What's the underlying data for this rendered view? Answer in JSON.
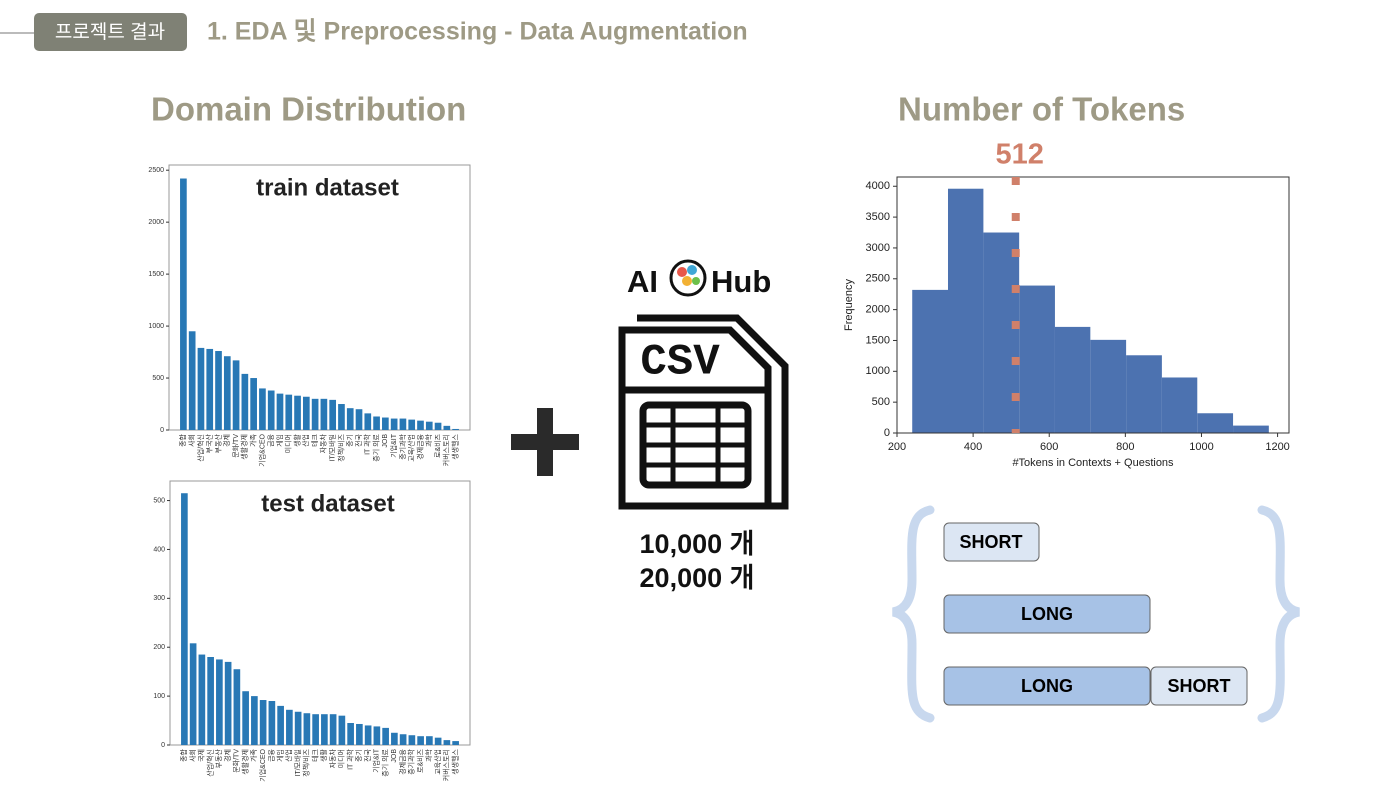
{
  "header": {
    "tag": "프로젝트 결과",
    "title": "1. EDA 및 Preprocessing - Data Augmentation"
  },
  "sections": [
    "Domain Distribution",
    "Number of Tokens"
  ],
  "logo": {
    "left": "AI",
    "right": "Hub"
  },
  "file_icon": "CSV",
  "counts": [
    "10,000 개",
    "20,000 개"
  ],
  "segments": [
    [
      "SHORT"
    ],
    [
      "LONG"
    ],
    [
      "LONG",
      "SHORT"
    ]
  ],
  "chart_data": [
    {
      "type": "bar",
      "title": "train dataset",
      "color": "#2878b5",
      "categories": [
        "종합",
        "사회",
        "산업/혁신",
        "부국산",
        "부동산",
        "경제",
        "문화/TV",
        "생활경제",
        "가족",
        "기업&CEO",
        "금융",
        "게임",
        "미디어",
        "생활",
        "산업",
        "테크",
        "자동차",
        "IT/모바일",
        "정책/비즈",
        "증기",
        "전국",
        "IT 과학",
        "증기 의료",
        "JOB",
        "기업&IT",
        "증기과학",
        "교육/산업",
        "경제금융",
        "과학",
        "로&비즈",
        "커버스토리",
        "생생헬스"
      ],
      "values": [
        2420,
        950,
        790,
        780,
        760,
        710,
        670,
        540,
        500,
        400,
        380,
        350,
        340,
        330,
        320,
        300,
        300,
        290,
        250,
        210,
        200,
        160,
        130,
        120,
        110,
        110,
        100,
        90,
        80,
        70,
        40,
        10
      ],
      "ylim": [
        0,
        2550
      ],
      "yticks": [
        0,
        500,
        1000,
        1500,
        2000,
        2500
      ]
    },
    {
      "type": "bar",
      "title": "test dataset",
      "color": "#2878b5",
      "categories": [
        "종합",
        "사회",
        "국제",
        "산업/혁신",
        "부동산",
        "경제",
        "문화/TV",
        "생활경제",
        "가족",
        "기업&CEO",
        "금융",
        "게임",
        "산업",
        "IT/모바일",
        "정책/비즈",
        "테크",
        "생활",
        "자동차",
        "미디어",
        "IT 과학",
        "증기",
        "전국",
        "기업&IT",
        "증기 의료",
        "JOB",
        "경제금융",
        "증기과학",
        "로&비즈",
        "과학",
        "교육산업",
        "커버스토리",
        "생생헬스"
      ],
      "values": [
        515,
        208,
        185,
        180,
        175,
        170,
        155,
        110,
        100,
        92,
        90,
        80,
        72,
        68,
        65,
        63,
        63,
        63,
        60,
        45,
        43,
        40,
        38,
        35,
        25,
        22,
        20,
        18,
        18,
        15,
        10,
        8
      ],
      "ylim": [
        0,
        540
      ],
      "yticks": [
        0,
        100,
        200,
        300,
        400,
        500
      ]
    },
    {
      "type": "histogram",
      "color": "#4c72b0",
      "xlabel": "#Tokens in Contexts + Questions",
      "ylabel": "Frequency",
      "bins": [
        240,
        334,
        427,
        521,
        615,
        708,
        802,
        896,
        989,
        1083,
        1177
      ],
      "values": [
        2320,
        3960,
        3250,
        2390,
        1720,
        1510,
        1260,
        900,
        320,
        120
      ],
      "xlim": [
        200,
        1230
      ],
      "ylim": [
        0,
        4150
      ],
      "xticks": [
        200,
        400,
        600,
        800,
        1000,
        1200
      ],
      "yticks": [
        0,
        500,
        1000,
        1500,
        2000,
        2500,
        3000,
        3500,
        4000
      ],
      "reference_line": 512,
      "reference_color": "#d0806a"
    }
  ]
}
